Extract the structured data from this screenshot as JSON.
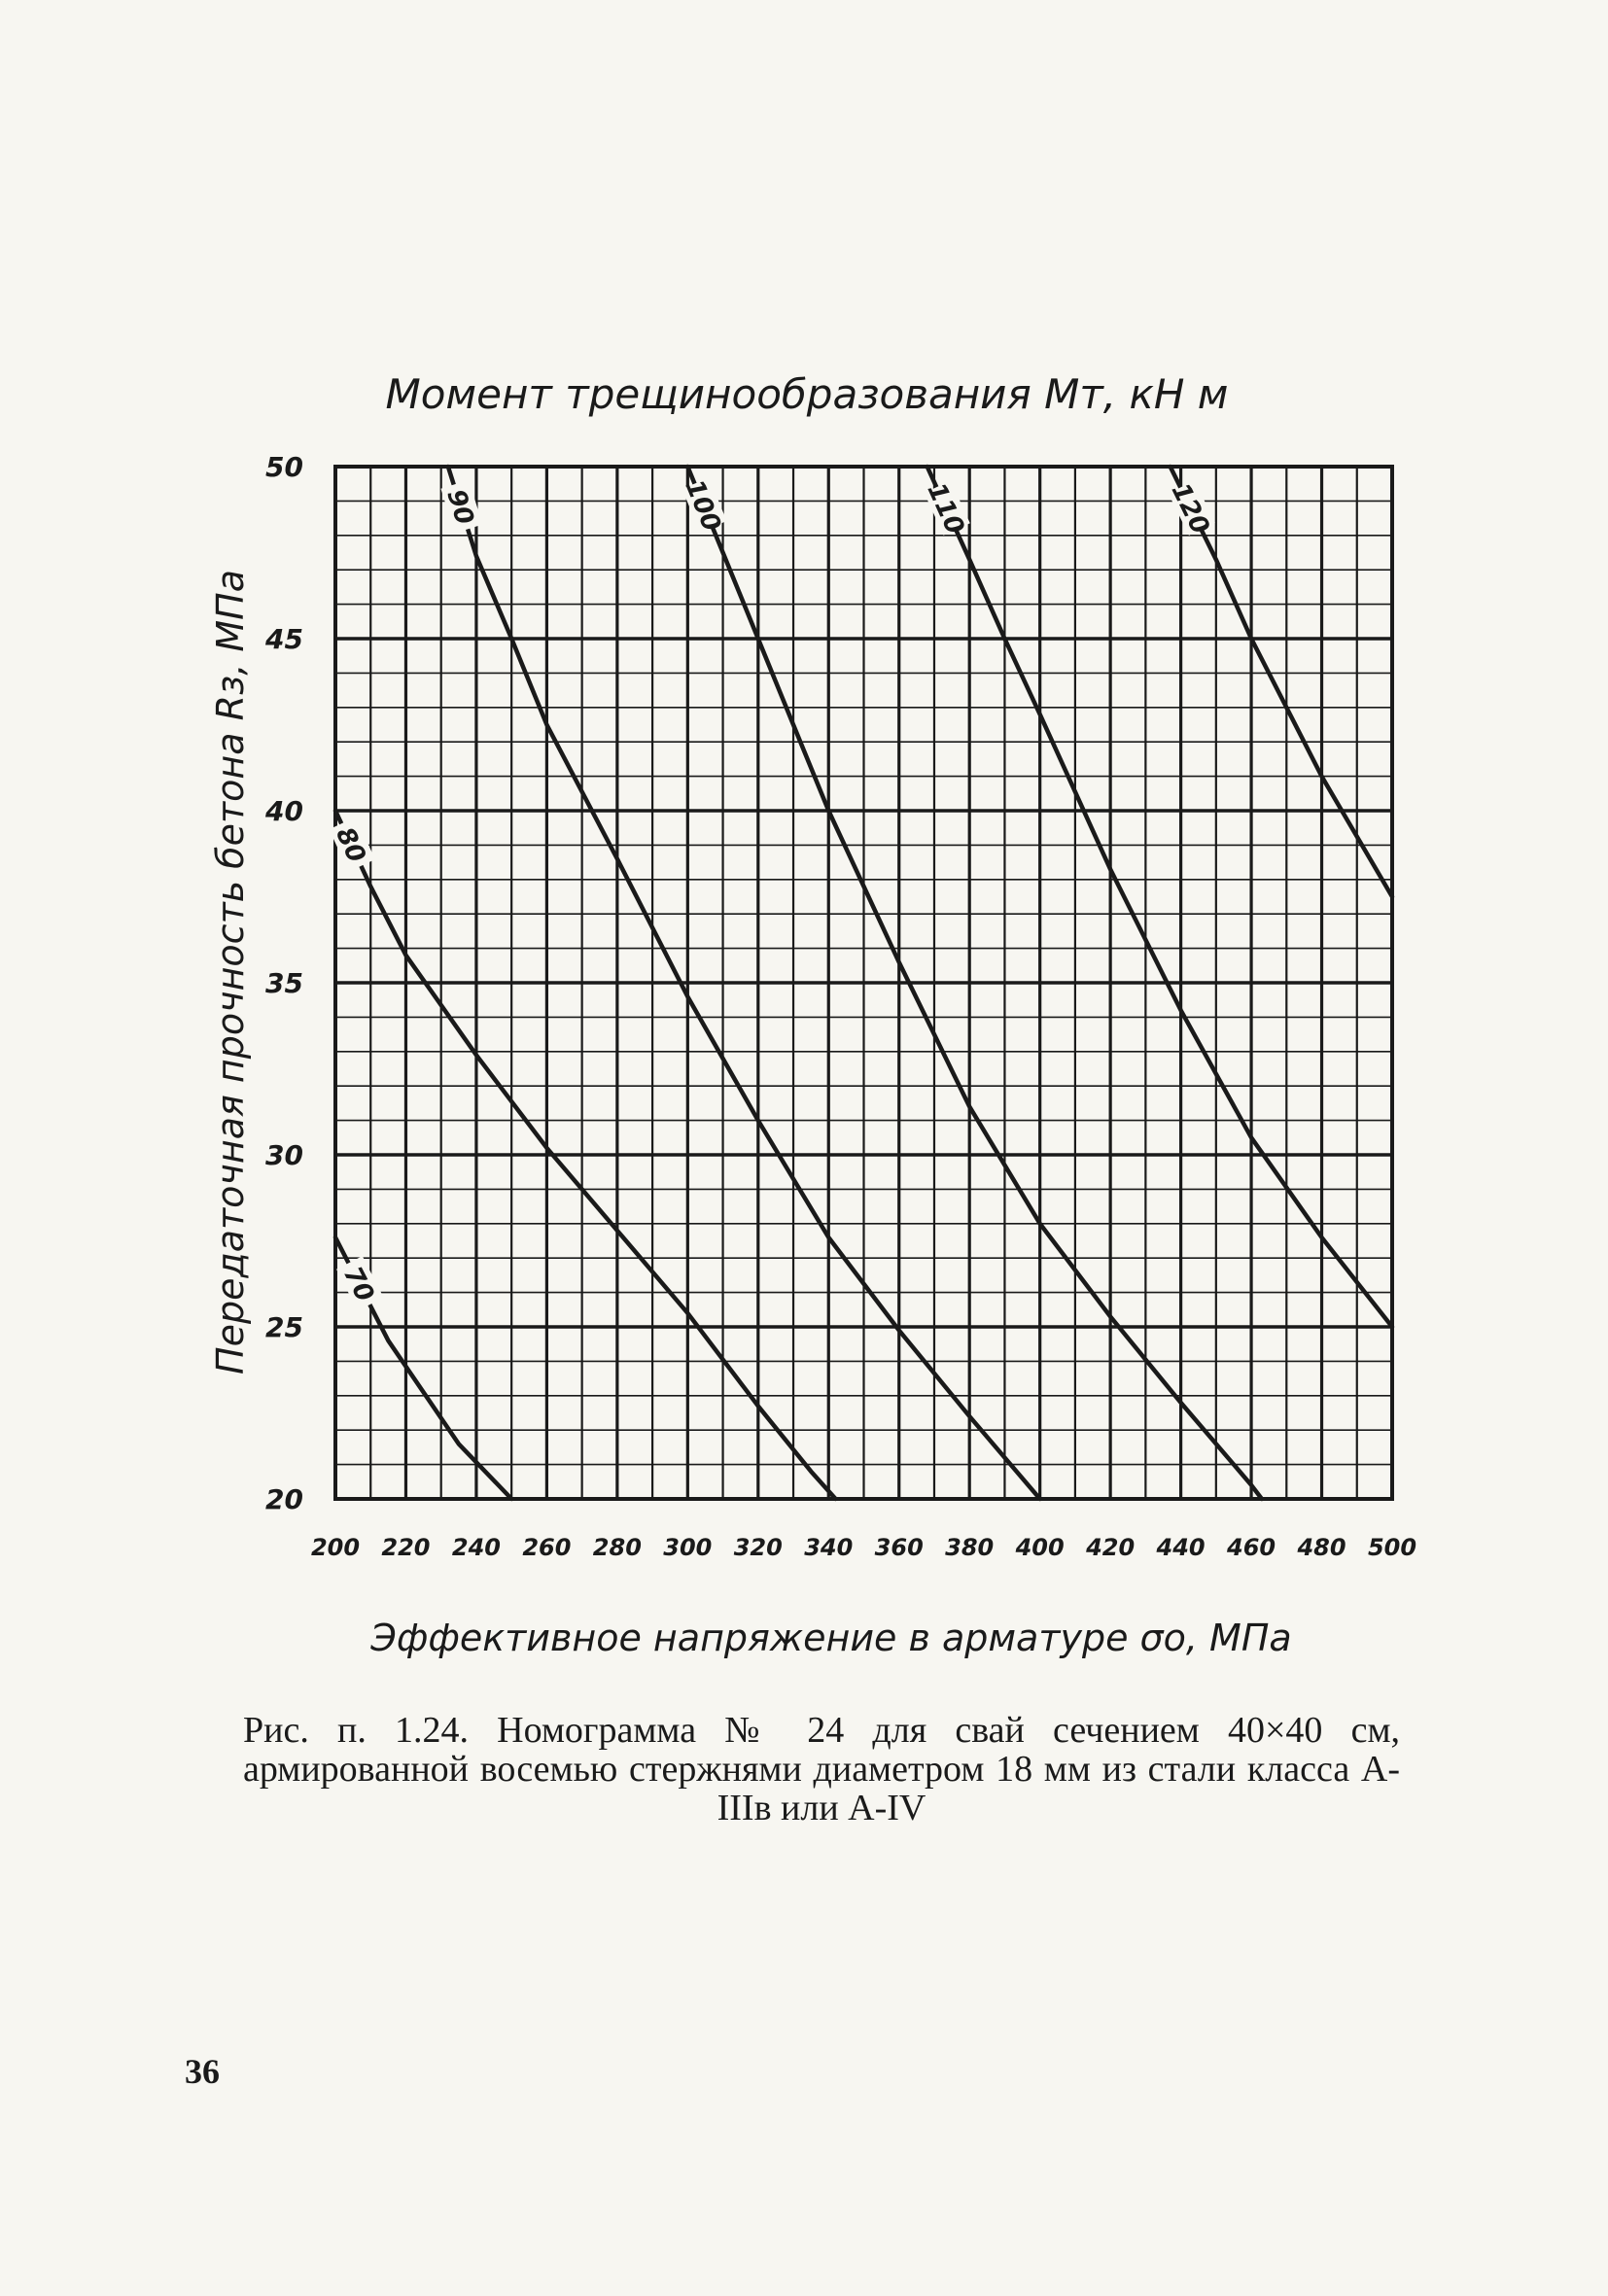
{
  "chart_data": {
    "type": "line",
    "title": "Момент трещинообразования Mт, кН м",
    "xlabel": "Эффективное напряжение в арматуре σo, МПа",
    "ylabel": "Передаточная прочность бетона Rз, МПа",
    "xlim": [
      200,
      500
    ],
    "ylim": [
      20,
      50
    ],
    "x_ticks": [
      "200",
      "220",
      "240",
      "260",
      "280",
      "300",
      "320",
      "340",
      "360",
      "380",
      "400",
      "420",
      "440",
      "460",
      "480",
      "500"
    ],
    "y_ticks": [
      "50",
      "45",
      "40",
      "35",
      "30",
      "25",
      "20"
    ],
    "grid": true,
    "series": [
      {
        "name": "70",
        "values": [
          [
            200,
            27.6
          ],
          [
            215,
            24.6
          ],
          [
            235,
            21.6
          ],
          [
            250,
            20.0
          ]
        ]
      },
      {
        "name": "80",
        "values": [
          [
            200,
            40.0
          ],
          [
            210,
            37.8
          ],
          [
            220,
            35.8
          ],
          [
            240,
            32.9
          ],
          [
            260,
            30.2
          ],
          [
            280,
            27.8
          ],
          [
            300,
            25.4
          ],
          [
            320,
            22.7
          ],
          [
            335,
            20.8
          ],
          [
            342,
            20.0
          ]
        ]
      },
      {
        "name": "90",
        "values": [
          [
            232,
            50.0
          ],
          [
            240,
            47.4
          ],
          [
            250,
            45.0
          ],
          [
            260,
            42.5
          ],
          [
            280,
            38.6
          ],
          [
            300,
            34.6
          ],
          [
            320,
            31.0
          ],
          [
            340,
            27.6
          ],
          [
            360,
            24.9
          ],
          [
            380,
            22.4
          ],
          [
            400,
            20.0
          ]
        ]
      },
      {
        "name": "100",
        "values": [
          [
            300,
            50.0
          ],
          [
            310,
            47.5
          ],
          [
            320,
            45.0
          ],
          [
            330,
            42.5
          ],
          [
            340,
            40.0
          ],
          [
            360,
            35.6
          ],
          [
            380,
            31.4
          ],
          [
            400,
            28.0
          ],
          [
            420,
            25.3
          ],
          [
            440,
            22.8
          ],
          [
            460,
            20.4
          ],
          [
            463,
            20.0
          ]
        ]
      },
      {
        "name": "110",
        "values": [
          [
            368,
            50.0
          ],
          [
            380,
            47.3
          ],
          [
            390,
            45.0
          ],
          [
            400,
            42.8
          ],
          [
            420,
            38.3
          ],
          [
            440,
            34.2
          ],
          [
            460,
            30.5
          ],
          [
            480,
            27.6
          ],
          [
            500,
            25.0
          ]
        ]
      },
      {
        "name": "120",
        "values": [
          [
            437,
            50.0
          ],
          [
            450,
            47.3
          ],
          [
            460,
            45.0
          ],
          [
            480,
            41.0
          ],
          [
            500,
            37.5
          ]
        ]
      }
    ]
  },
  "caption": "Рис. п. 1.24. Номограмма № 24 для свай сечением 40×40 см, армированной восемью стержнями диаметром 18 мм из стали класса А-IIIв или А-IV",
  "page_number": "36",
  "colors": {
    "ink": "#1a1a1a",
    "paper": "#f7f6f1"
  }
}
